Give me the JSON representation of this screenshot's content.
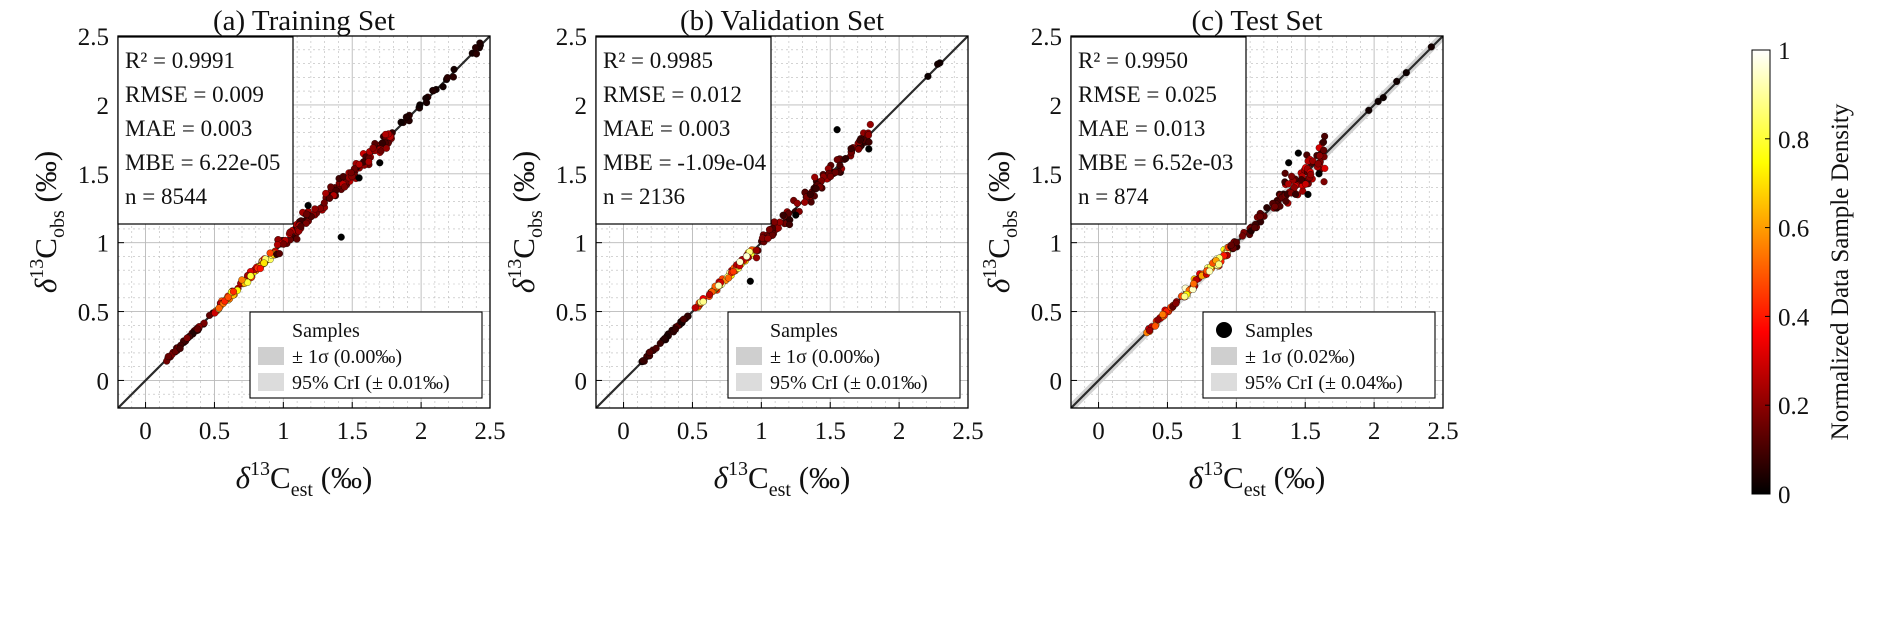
{
  "colors": {
    "identity_line": "#2b2b2b",
    "band_fill": "#c8c8c8",
    "grid": "#b9b9b9",
    "point_edge": "#000000"
  },
  "colorbar": {
    "label": "Normalized Data Sample Density",
    "ticks": [
      "0",
      "0.2",
      "0.4",
      "0.6",
      "0.8",
      "1"
    ],
    "colormap": "hot"
  },
  "chart_data": [
    {
      "type": "scatter",
      "title": "(a) Training Set",
      "xlabel": {
        "base": "δ",
        "sup": "13",
        "main": "C",
        "sub": "est",
        "unit": " (‰)"
      },
      "ylabel": {
        "base": "δ",
        "sup": "13",
        "main": "C",
        "sub": "obs",
        "unit": " (‰)"
      },
      "xlim": [
        -0.2,
        2.5
      ],
      "ylim": [
        -0.2,
        2.5
      ],
      "xticks": [
        0,
        0.5,
        1,
        1.5,
        2,
        2.5
      ],
      "yticks": [
        0,
        0.5,
        1,
        1.5,
        2,
        2.5
      ],
      "grid": true,
      "stats": [
        "R² = 0.9991",
        "RMSE = 0.009",
        "MAE = 0.003",
        "MBE = 6.22e-05",
        "n = 8544"
      ],
      "legend": {
        "placement": "bottom-right",
        "entries": [
          "Samples",
          "± 1σ (0.00‰)",
          "95% CrI (± 0.01‰)"
        ],
        "show_marker": false
      },
      "band_halfwidth": 0.005,
      "points": {
        "segments": [
          [
            0.12,
            0.5
          ],
          [
            0.5,
            0.95
          ],
          [
            0.95,
            1.8
          ],
          [
            1.8,
            2.45
          ]
        ],
        "counts": [
          40,
          90,
          130,
          25
        ],
        "density": [
          0.12,
          0.55,
          0.18,
          0.04
        ],
        "spread": [
          0.008,
          0.012,
          0.03,
          0.015
        ],
        "outliers": [
          [
            1.42,
            1.04
          ],
          [
            1.18,
            1.27
          ],
          [
            1.55,
            1.47
          ],
          [
            1.7,
            1.58
          ]
        ]
      }
    },
    {
      "type": "scatter",
      "title": "(b) Validation Set",
      "xlabel": {
        "base": "δ",
        "sup": "13",
        "main": "C",
        "sub": "est",
        "unit": " (‰)"
      },
      "ylabel": {
        "base": "δ",
        "sup": "13",
        "main": "C",
        "sub": "obs",
        "unit": " (‰)"
      },
      "xlim": [
        -0.2,
        2.5
      ],
      "ylim": [
        -0.2,
        2.5
      ],
      "xticks": [
        0,
        0.5,
        1,
        1.5,
        2,
        2.5
      ],
      "yticks": [
        0,
        0.5,
        1,
        1.5,
        2,
        2.5
      ],
      "grid": true,
      "stats": [
        "R² = 0.9985",
        "RMSE = 0.012",
        "MAE = 0.003",
        "MBE = -1.09e-04",
        "n = 2136"
      ],
      "legend": {
        "placement": "bottom-right",
        "entries": [
          "Samples",
          "± 1σ (0.00‰)",
          "95% CrI (± 0.01‰)"
        ],
        "show_marker": false
      },
      "band_halfwidth": 0.005,
      "points": {
        "segments": [
          [
            0.12,
            0.5
          ],
          [
            0.5,
            0.95
          ],
          [
            0.95,
            1.8
          ],
          [
            2.2,
            2.3
          ]
        ],
        "counts": [
          35,
          80,
          110,
          3
        ],
        "density": [
          0.08,
          0.6,
          0.15,
          0.02
        ],
        "spread": [
          0.006,
          0.012,
          0.035,
          0.006
        ],
        "outliers": [
          [
            1.55,
            1.82
          ],
          [
            1.78,
            1.68
          ],
          [
            1.25,
            1.2
          ],
          [
            0.92,
            0.72
          ]
        ]
      }
    },
    {
      "type": "scatter",
      "title": "(c) Test Set",
      "xlabel": {
        "base": "δ",
        "sup": "13",
        "main": "C",
        "sub": "est",
        "unit": " (‰)"
      },
      "ylabel": {
        "base": "δ",
        "sup": "13",
        "main": "C",
        "sub": "obs",
        "unit": " (‰)"
      },
      "xlim": [
        -0.2,
        2.5
      ],
      "ylim": [
        -0.2,
        2.5
      ],
      "xticks": [
        0,
        0.5,
        1,
        1.5,
        2,
        2.5
      ],
      "yticks": [
        0,
        0.5,
        1,
        1.5,
        2,
        2.5
      ],
      "grid": true,
      "stats": [
        "R² = 0.9950",
        "RMSE = 0.025",
        "MAE = 0.013",
        "MBE = 6.52e-03",
        "n = 874"
      ],
      "legend": {
        "placement": "bottom-right",
        "entries": [
          "Samples",
          "± 1σ (0.02‰)",
          "95% CrI (± 0.04‰)"
        ],
        "show_marker": true
      },
      "band_halfwidth": 0.04,
      "points": {
        "segments": [
          [
            0.35,
            0.6
          ],
          [
            0.6,
            0.95
          ],
          [
            0.95,
            1.35
          ],
          [
            1.35,
            1.65
          ],
          [
            1.85,
            2.45
          ]
        ],
        "counts": [
          30,
          70,
          50,
          60,
          6
        ],
        "density": [
          0.35,
          0.6,
          0.12,
          0.2,
          0.02
        ],
        "spread": [
          0.01,
          0.02,
          0.025,
          0.07,
          0.01
        ],
        "outliers": [
          [
            1.45,
            1.65
          ],
          [
            1.6,
            1.5
          ],
          [
            1.52,
            1.35
          ],
          [
            1.38,
            1.58
          ]
        ]
      }
    }
  ]
}
